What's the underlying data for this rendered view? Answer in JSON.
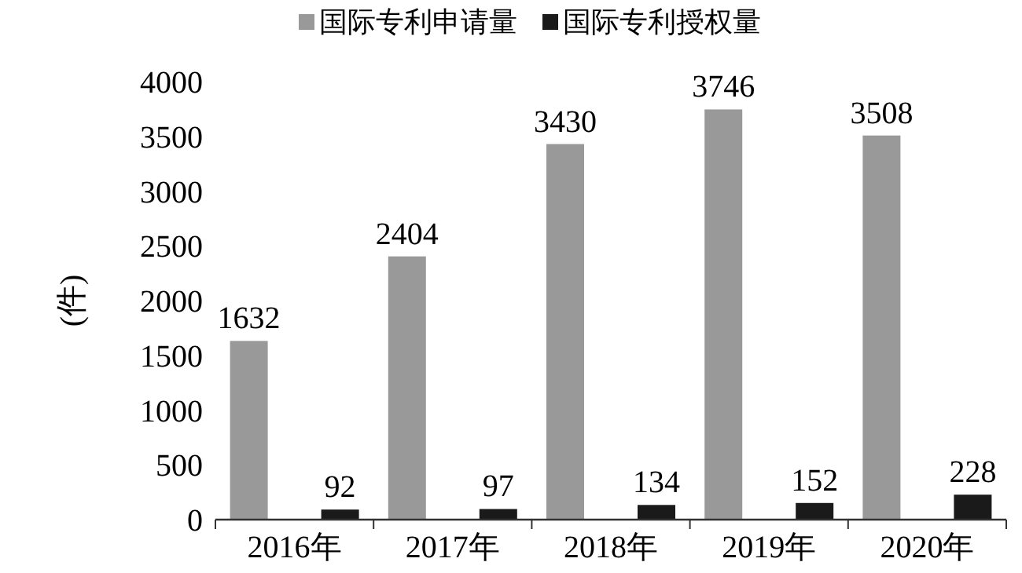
{
  "chart_data": {
    "type": "bar",
    "ylabel": "(件)",
    "categories": [
      "2016年",
      "2017年",
      "2018年",
      "2019年",
      "2020年"
    ],
    "series": [
      {
        "name": "国际专利申请量",
        "color": "#999999",
        "values": [
          1632,
          2404,
          3430,
          3746,
          3508
        ]
      },
      {
        "name": "国际专利授权量",
        "color": "#1a1a1a",
        "values": [
          92,
          97,
          134,
          152,
          228
        ]
      }
    ],
    "ylim": [
      0,
      4000
    ],
    "yticks": [
      0,
      500,
      1000,
      1500,
      2000,
      2500,
      3000,
      3500,
      4000
    ],
    "data_labels": true,
    "legend": "top",
    "grid": false
  }
}
